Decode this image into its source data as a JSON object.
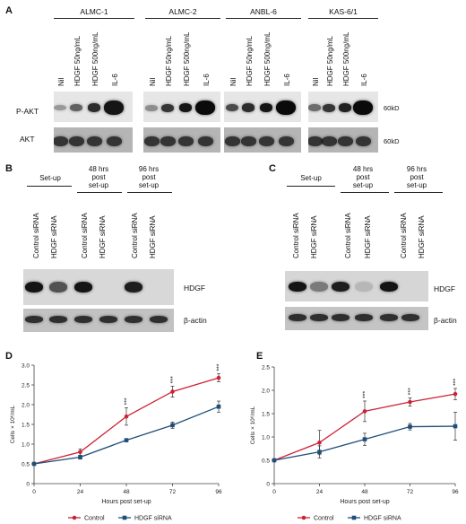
{
  "panelA": {
    "label": "A",
    "groups": [
      "ALMC-1",
      "ALMC-2",
      "ANBL-6",
      "KAS-6/1"
    ],
    "lanes": [
      "Nil",
      "HDGF 50ng/mL",
      "HDGF 500ng/mL",
      "IL-6"
    ],
    "rows": [
      "P-AKT",
      "AKT"
    ],
    "mw": "60kD"
  },
  "panelB": {
    "label": "B",
    "headers": [
      "Set-up",
      "48 hrs\npost\nset-up",
      "96 hrs\npost\nset-up"
    ],
    "lanes": [
      "Control siRNA",
      "HDGF siRNA",
      "Control siRNA",
      "HDGF siRNA",
      "Control siRNA",
      "HDGF siRNA"
    ],
    "rows": [
      "HDGF",
      "β-actin"
    ]
  },
  "panelC": {
    "label": "C",
    "headers": [
      "Set-up",
      "48 hrs\npost\nset-up",
      "96 hrs\npost\nset-up"
    ],
    "lanes": [
      "Control siRNA",
      "HDGF siRNA",
      "Control siRNA",
      "HDGF siRNA",
      "Control siRNA",
      "HDGF siRNA"
    ],
    "rows": [
      "HDGF",
      "β-actin"
    ]
  },
  "panelD": {
    "label": "D"
  },
  "panelE": {
    "label": "E"
  },
  "chart_data": [
    {
      "type": "line",
      "x": [
        0,
        24,
        48,
        72,
        96
      ],
      "xlabel": "Hours post set-up",
      "ylabel": "Cells × 10⁶/mL",
      "ylim": [
        0,
        3.0
      ],
      "yticks": [
        "0",
        "0.5",
        "1.0",
        "1.5",
        "2.0",
        "2.5",
        "3.0"
      ],
      "xticks": [
        "0",
        "24",
        "48",
        "72",
        "96"
      ],
      "significance": [
        "",
        "",
        "***",
        "***",
        "***"
      ],
      "legend": "bottom",
      "series": [
        {
          "name": "Control",
          "color": "#cc2236",
          "values": [
            0.5,
            0.8,
            1.7,
            2.33,
            2.68
          ],
          "err": [
            0.02,
            0.08,
            0.22,
            0.14,
            0.1
          ]
        },
        {
          "name": "HDGF siRNA",
          "color": "#1f4e79",
          "values": [
            0.5,
            0.67,
            1.1,
            1.48,
            1.95
          ],
          "err": [
            0.02,
            0.05,
            0.04,
            0.08,
            0.14
          ]
        }
      ]
    },
    {
      "type": "line",
      "x": [
        0,
        24,
        48,
        72,
        96
      ],
      "xlabel": "Hours post set-up",
      "ylabel": "Cells × 10⁶/mL",
      "ylim": [
        0,
        2.5
      ],
      "yticks": [
        "0",
        "0.5",
        "1.0",
        "1.5",
        "2.0",
        "2.5"
      ],
      "xticks": [
        "0",
        "24",
        "48",
        "72",
        "96"
      ],
      "significance": [
        "",
        "",
        "***",
        "***",
        "***"
      ],
      "legend": "bottom",
      "series": [
        {
          "name": "Control",
          "color": "#cc2236",
          "values": [
            0.5,
            0.88,
            1.55,
            1.75,
            1.92
          ],
          "err": [
            0.02,
            0.26,
            0.22,
            0.09,
            0.12
          ]
        },
        {
          "name": "HDGF siRNA",
          "color": "#1f4e79",
          "values": [
            0.5,
            0.68,
            0.95,
            1.22,
            1.23
          ],
          "err": [
            0.02,
            0.13,
            0.13,
            0.07,
            0.3
          ]
        }
      ]
    }
  ]
}
